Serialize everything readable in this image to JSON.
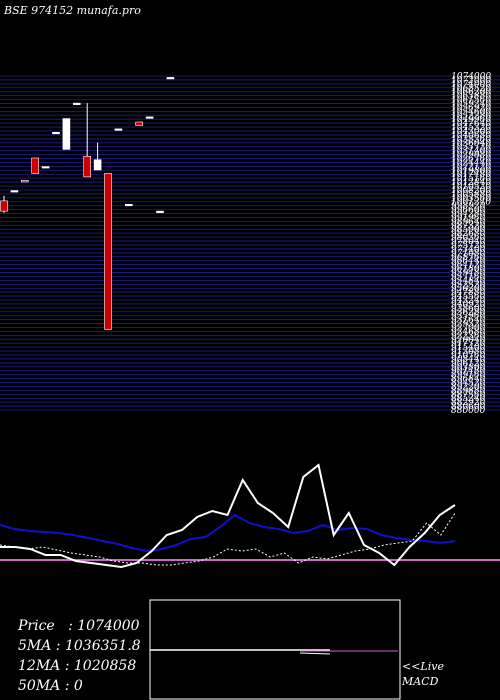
{
  "header": {
    "title": "BSE 974152  munafa.pro"
  },
  "colors": {
    "background": "#000000",
    "grid": "#1a1a7a",
    "bullish": "#ffffff",
    "bearish": "#cc0000",
    "ma_blue": "#1010cc",
    "ma_white": "#ffffff",
    "ma_dotted": "#ffffff",
    "signal_line": "#cc66cc",
    "text": "#ffffff"
  },
  "stats": {
    "price": "Price   : 1074000",
    "ma5": "5MA : 1036351.8",
    "ma12": "12MA : 1020858",
    "ma50": "50MA : 0"
  },
  "live_label": {
    "line1": "<<Live",
    "line2": "MACD"
  },
  "chart_data": [
    {
      "type": "candlestick",
      "title": "BSE 974152",
      "ylim": [
        880000,
        1076000
      ],
      "price_labels": [
        "1074000",
        "1072000",
        "1074000",
        "1068520",
        "1066200",
        "1063880",
        "1061560",
        "1059240",
        "1056920",
        "1054600",
        "1052280",
        "1049960",
        "1047640",
        "1045320",
        "1043000",
        "1040680",
        "1038360",
        "1036040",
        "1033720",
        "1031400",
        "1029080",
        "1026760",
        "1024440",
        "1022120",
        "1019800",
        "1017480",
        "1015160",
        "1012840",
        "1010520",
        "1008200",
        "1005880",
        "1003560",
        "1001240",
        "998920",
        "996600",
        "994280",
        "991960",
        "989640",
        "987320",
        "985000",
        "982680",
        "980360",
        "978040",
        "975720",
        "973400",
        "971080",
        "968760",
        "966440",
        "964120",
        "961800",
        "959480",
        "957160",
        "954840",
        "952520",
        "950200",
        "947880",
        "945560",
        "943240",
        "940920",
        "938600",
        "936280",
        "933960",
        "931640",
        "929320",
        "927000",
        "924680",
        "922360",
        "920040",
        "917720",
        "915400",
        "913080",
        "910760",
        "908440",
        "906120",
        "903800",
        "901480",
        "899160",
        "896840",
        "894520",
        "892200",
        "889880",
        "887560",
        "885240",
        "882920",
        "880600",
        "880000"
      ],
      "candles": [
        {
          "o": 1002000,
          "h": 1005000,
          "c": 996000,
          "l": 995000
        },
        {
          "o": 1008000,
          "h": 1008000,
          "c": 1008000,
          "l": 1008000
        },
        {
          "o": 1014000,
          "h": 1014000,
          "c": 1013000,
          "l": 1013000
        },
        {
          "o": 1027000,
          "h": 1027000,
          "c": 1018000,
          "l": 1018000
        },
        {
          "o": 1022000,
          "h": 1022000,
          "c": 1022000,
          "l": 1022000
        },
        {
          "o": 1042000,
          "h": 1042000,
          "c": 1042000,
          "l": 1042000
        },
        {
          "o": 1032000,
          "h": 1050000,
          "c": 1050000,
          "l": 1032000
        },
        {
          "o": 1059000,
          "h": 1059000,
          "c": 1059000,
          "l": 1059000
        },
        {
          "o": 1028000,
          "h": 1059000,
          "c": 1016000,
          "l": 1016000
        },
        {
          "o": 1020000,
          "h": 1036000,
          "c": 1026000,
          "l": 1020000
        },
        {
          "o": 1018000,
          "h": 1018000,
          "c": 927000,
          "l": 927000
        },
        {
          "o": 1044000,
          "h": 1044000,
          "c": 1044000,
          "l": 1044000
        },
        {
          "o": 1000000,
          "h": 1000000,
          "c": 1000000,
          "l": 1000000
        },
        {
          "o": 1048000,
          "h": 1048000,
          "c": 1046000,
          "l": 1046000
        },
        {
          "o": 1051000,
          "h": 1051000,
          "c": 1051000,
          "l": 1051000
        },
        {
          "o": 996000,
          "h": 996000,
          "c": 996000,
          "l": 996000
        },
        {
          "o": 1074000,
          "h": 1074000,
          "c": 1074000,
          "l": 1074000
        }
      ]
    },
    {
      "type": "line",
      "title": "Indicators",
      "series": [
        {
          "values": [
            50,
            46,
            44,
            43,
            42,
            40,
            37,
            34,
            31,
            27,
            24,
            26,
            30,
            36,
            38,
            48,
            60,
            52,
            48,
            46,
            42,
            44,
            50,
            45,
            47,
            46,
            40,
            37,
            35,
            34,
            32,
            34
          ]
        },
        {
          "values": [
            28,
            28,
            26,
            20,
            20,
            14,
            12,
            10,
            8,
            12,
            24,
            40,
            45,
            58,
            64,
            60,
            95,
            72,
            62,
            48,
            98,
            110,
            40,
            62,
            30,
            22,
            10,
            28,
            42,
            60,
            70
          ]
        },
        {
          "values": [
            30,
            28,
            26,
            28,
            25,
            22,
            20,
            18,
            14,
            12,
            12,
            10,
            10,
            12,
            14,
            18,
            26,
            24,
            26,
            18,
            22,
            12,
            18,
            16,
            20,
            24,
            26,
            30,
            32,
            34,
            52,
            40,
            62
          ]
        }
      ]
    }
  ]
}
